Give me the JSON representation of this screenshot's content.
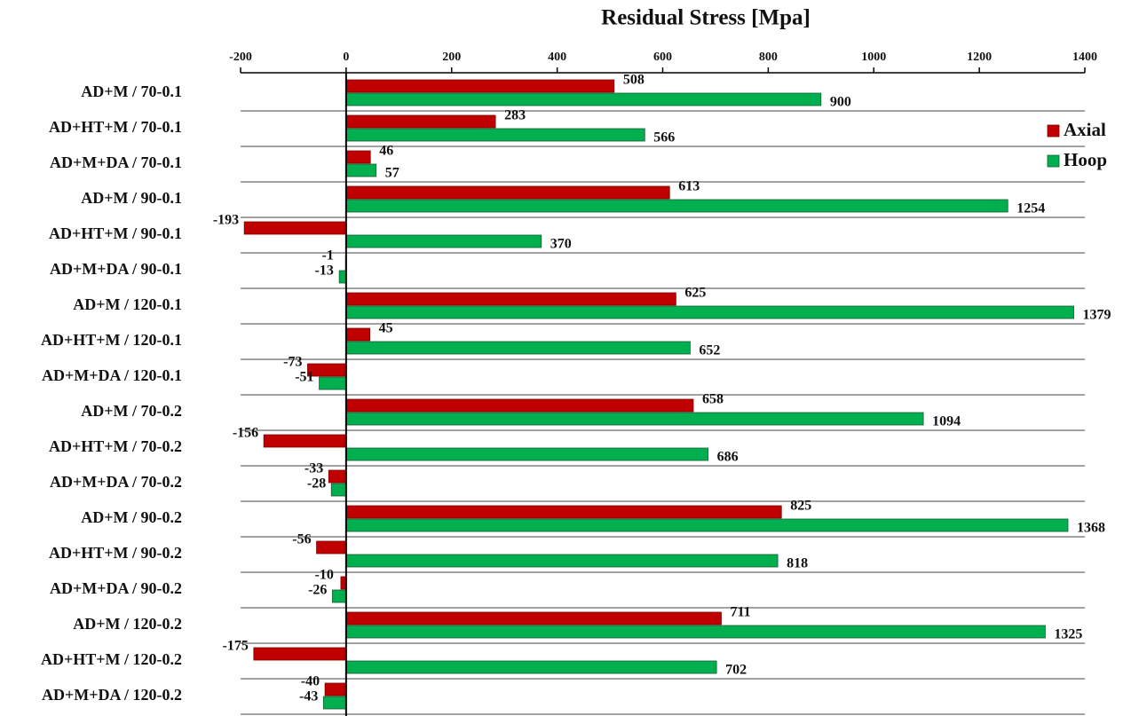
{
  "chart_data": {
    "type": "bar",
    "orientation": "horizontal",
    "title": "Residual Stress [Mpa]",
    "categories": [
      "AD+M / 70-0.1",
      "AD+HT+M / 70-0.1",
      "AD+M+DA / 70-0.1",
      "AD+M / 90-0.1",
      "AD+HT+M / 90-0.1",
      "AD+M+DA / 90-0.1",
      "AD+M / 120-0.1",
      "AD+HT+M / 120-0.1",
      "AD+M+DA / 120-0.1",
      "AD+M / 70-0.2",
      "AD+HT+M / 70-0.2",
      "AD+M+DA / 70-0.2",
      "AD+M / 90-0.2",
      "AD+HT+M / 90-0.2",
      "AD+M+DA / 90-0.2",
      "AD+M / 120-0.2",
      "AD+HT+M / 120-0.2",
      "AD+M+DA / 120-0.2"
    ],
    "series": [
      {
        "name": "Axial",
        "color": "#c00000",
        "values": [
          508,
          283,
          46,
          613,
          -193,
          -1,
          625,
          45,
          -73,
          658,
          -156,
          -33,
          825,
          -56,
          -10,
          711,
          -175,
          -40
        ]
      },
      {
        "name": "Hoop",
        "color": "#00b050",
        "values": [
          900,
          566,
          57,
          1254,
          370,
          -13,
          1379,
          652,
          -51,
          1094,
          686,
          -28,
          1368,
          818,
          -26,
          1325,
          702,
          -43
        ]
      }
    ],
    "xlim": [
      -200,
      1400
    ],
    "xticks": [
      -200,
      0,
      200,
      400,
      600,
      800,
      1000,
      1200,
      1400
    ],
    "legend": "upper right"
  }
}
